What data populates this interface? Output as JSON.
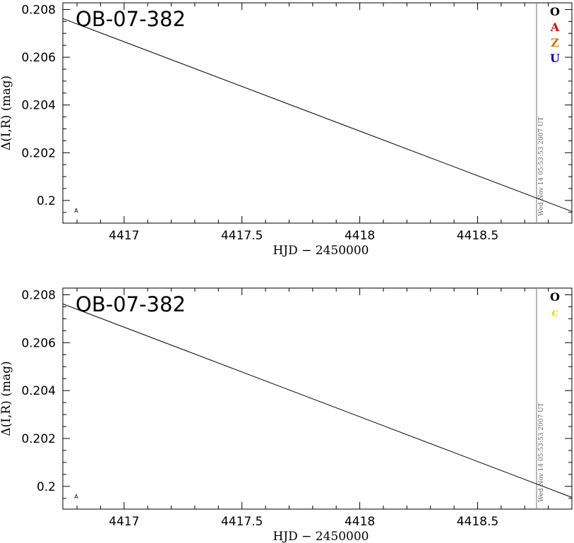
{
  "chart_data": [
    {
      "type": "line",
      "title": "OB-07-382",
      "xlabel": "HJD − 2450000",
      "ylabel": "Δ(I,R) (mag)",
      "xlim": [
        4416.74,
        4418.9
      ],
      "ylim": [
        0.19905,
        0.20828
      ],
      "x_ticks": [
        4417,
        4417.5,
        4418,
        4418.5
      ],
      "x_tick_labels": [
        "4417",
        "4417.5",
        "4418",
        "4418.5"
      ],
      "y_ticks": [
        0.2,
        0.202,
        0.204,
        0.206,
        0.208
      ],
      "y_tick_labels": [
        "0.2",
        "0.202",
        "0.204",
        "0.206",
        "0.208"
      ],
      "series": [
        {
          "x": [
            4416.74,
            4418.9
          ],
          "y": [
            0.20762,
            0.19954
          ],
          "color": "#000000"
        }
      ],
      "current_time_marker_x": 4418.75,
      "timestamp": "Wed Nov 14 05:53:53 2007 UT",
      "observatory_legend": [
        {
          "label": "O",
          "color": "#000000"
        },
        {
          "label": "A",
          "color": "#dd0000"
        },
        {
          "label": "Z",
          "color": "#e07000"
        },
        {
          "label": "U",
          "color": "#0000bb"
        }
      ],
      "corner_mark": "A"
    },
    {
      "type": "line",
      "title": "OB-07-382",
      "xlabel": "HJD − 2450000",
      "ylabel": "Δ(I,R) (mag)",
      "xlim": [
        4416.74,
        4418.9
      ],
      "ylim": [
        0.19905,
        0.20828
      ],
      "x_ticks": [
        4417,
        4417.5,
        4418,
        4418.5
      ],
      "x_tick_labels": [
        "4417",
        "4417.5",
        "4418",
        "4418.5"
      ],
      "y_ticks": [
        0.2,
        0.202,
        0.204,
        0.206,
        0.208
      ],
      "y_tick_labels": [
        "0.2",
        "0.202",
        "0.204",
        "0.206",
        "0.208"
      ],
      "series": [
        {
          "x": [
            4416.74,
            4418.9
          ],
          "y": [
            0.20762,
            0.19954
          ],
          "color": "#000000"
        }
      ],
      "current_time_marker_x": 4418.75,
      "timestamp": "Wed Nov 14 05:53:53 2007 UT",
      "observatory_legend": [
        {
          "label": "O",
          "color": "#000000"
        },
        {
          "label": "c",
          "color": "#e8e000"
        }
      ],
      "corner_mark": "A"
    }
  ]
}
